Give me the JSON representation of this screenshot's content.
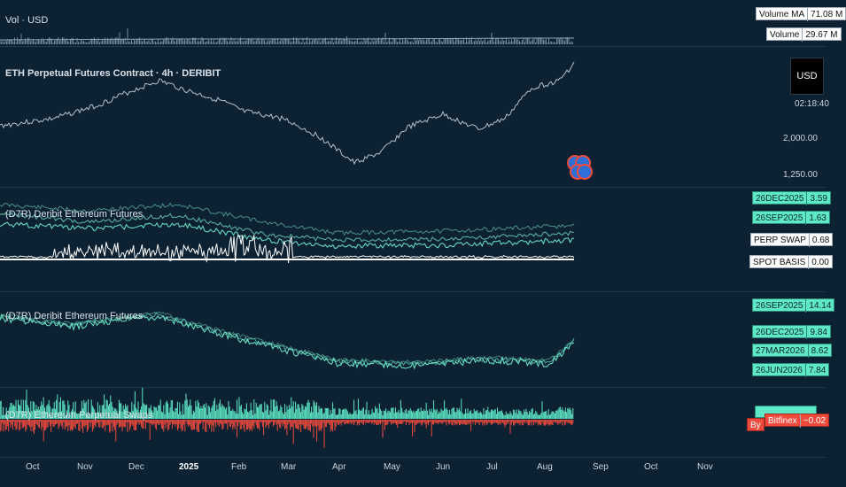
{
  "volume_pane": {
    "title": "Vol · USD",
    "tags": [
      {
        "name": "Volume MA",
        "value": "71.08 M"
      },
      {
        "name": "Volume",
        "value": "29.67 M"
      }
    ]
  },
  "price_pane": {
    "title": "ETH Perpetual Futures Contract · 4h · DERIBIT",
    "currency_button": "USD",
    "countdown": "02:18:40",
    "axis_labels": [
      "2,000.00",
      "1,250.00"
    ]
  },
  "basis_pane": {
    "title": "(D7R) Deribit Ethereum Futures",
    "tags": [
      {
        "name": "26DEC2025",
        "value": "3.59",
        "style": "teal"
      },
      {
        "name": "26SEP2025",
        "value": "1.63",
        "style": "teal"
      },
      {
        "name": "PERP SWAP",
        "value": "0.68",
        "style": "white"
      },
      {
        "name": "SPOT BASIS",
        "value": "0.00",
        "style": "white"
      }
    ]
  },
  "futures_pane": {
    "title": "(D7R) Deribit Ethereum Futures",
    "tags": [
      {
        "name": "26SEP2025",
        "value": "14.14"
      },
      {
        "name": "26DEC2025",
        "value": "9.84"
      },
      {
        "name": "27MAR2026",
        "value": "8.62"
      },
      {
        "name": "26JUN2026",
        "value": "7.84"
      }
    ]
  },
  "swaps_pane": {
    "title": "(D7R) Ethereum Perpetual Swaps",
    "tags": [
      {
        "name": "Bitfinex",
        "value": "−0.02"
      },
      {
        "name": "By",
        "value": ""
      }
    ]
  },
  "x_axis": [
    "Oct",
    "Nov",
    "Dec",
    "2025",
    "Feb",
    "Mar",
    "Apr",
    "May",
    "Jun",
    "Jul",
    "Aug",
    "Sep",
    "Oct",
    "Nov"
  ],
  "colors": {
    "background": "#0c2233",
    "teal": "#5ee8c6",
    "red": "#ef4a3c",
    "white": "#ffffff"
  }
}
